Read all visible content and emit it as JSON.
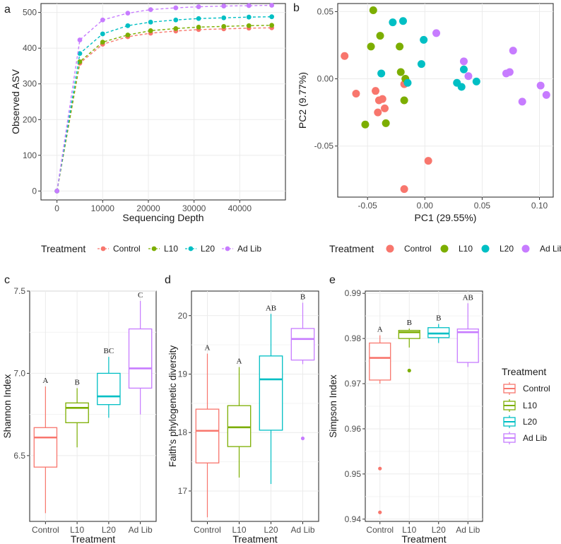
{
  "colors": {
    "Control": "#F8766D",
    "L10": "#7CAE00",
    "L20": "#00BFC4",
    "Ad Lib": "#C77CFF"
  },
  "chart_data": [
    {
      "panel_label": "a",
      "type": "line",
      "xlabel": "Sequencing Depth",
      "ylabel": "Observed ASV",
      "x": [
        0,
        5000,
        10000,
        15500,
        20500,
        26000,
        31000,
        36500,
        42000,
        47000
      ],
      "xlim": [
        -3500,
        50000
      ],
      "ylim": [
        -25,
        525
      ],
      "xticks": [
        0,
        10000,
        20000,
        30000,
        40000
      ],
      "xtick_labels": [
        "0",
        "10000",
        "20000",
        "30000",
        "40000"
      ],
      "yticks": [
        0,
        100,
        200,
        300,
        400,
        500
      ],
      "ytick_labels": [
        "0",
        "100",
        "200",
        "300",
        "400",
        "500"
      ],
      "series": [
        {
          "name": "Control",
          "values": [
            0,
            358,
            411,
            432,
            442,
            448,
            452,
            454,
            456,
            457
          ]
        },
        {
          "name": "L10",
          "values": [
            0,
            362,
            417,
            437,
            449,
            455,
            459,
            461,
            463,
            464
          ]
        },
        {
          "name": "L20",
          "values": [
            0,
            385,
            440,
            463,
            473,
            479,
            483,
            485,
            487,
            488
          ]
        },
        {
          "name": "Ad Lib",
          "values": [
            0,
            423,
            479,
            498,
            508,
            513,
            516,
            518,
            519,
            520
          ]
        }
      ],
      "legend_title": "Treatment",
      "legend_entries": [
        "Control",
        "L10",
        "L20",
        "Ad Lib"
      ],
      "legend_position": "bottom"
    },
    {
      "panel_label": "b",
      "type": "scatter",
      "xlabel": "PC1 (29.55%)",
      "ylabel": "PC2 (9.77%)",
      "xlim": [
        -0.076,
        0.112
      ],
      "ylim": [
        -0.088,
        0.056
      ],
      "xticks": [
        -0.05,
        0.0,
        0.05,
        0.1
      ],
      "xtick_labels": [
        "-0.05",
        "0.00",
        "0.05",
        "0.10"
      ],
      "yticks": [
        -0.05,
        0.0,
        0.05
      ],
      "ytick_labels": [
        "-0.05",
        "0.00",
        "0.05"
      ],
      "series": [
        {
          "name": "Control",
          "points": [
            [
              -0.07,
              0.017
            ],
            [
              -0.06,
              -0.011
            ],
            [
              -0.043,
              -0.009
            ],
            [
              -0.04,
              -0.016
            ],
            [
              -0.037,
              -0.015
            ],
            [
              -0.041,
              -0.025
            ],
            [
              -0.035,
              -0.022
            ],
            [
              -0.018,
              -0.004
            ],
            [
              0.003,
              -0.061
            ],
            [
              -0.018,
              -0.082
            ]
          ]
        },
        {
          "name": "L10",
          "points": [
            [
              -0.045,
              0.051
            ],
            [
              -0.047,
              0.024
            ],
            [
              -0.039,
              0.032
            ],
            [
              -0.022,
              0.024
            ],
            [
              -0.021,
              0.005
            ],
            [
              -0.017,
              0.0
            ],
            [
              -0.018,
              -0.016
            ],
            [
              -0.034,
              -0.033
            ],
            [
              -0.052,
              -0.034
            ]
          ]
        },
        {
          "name": "L20",
          "points": [
            [
              -0.028,
              0.042
            ],
            [
              -0.019,
              0.043
            ],
            [
              -0.038,
              0.004
            ],
            [
              -0.015,
              -0.003
            ],
            [
              -0.003,
              0.011
            ],
            [
              -0.001,
              0.029
            ],
            [
              0.028,
              -0.003
            ],
            [
              0.032,
              -0.006
            ],
            [
              0.034,
              0.007
            ],
            [
              0.045,
              -0.002
            ]
          ]
        },
        {
          "name": "Ad Lib",
          "points": [
            [
              0.01,
              0.034
            ],
            [
              0.034,
              0.013
            ],
            [
              0.038,
              0.002
            ],
            [
              0.071,
              0.004
            ],
            [
              0.074,
              0.005
            ],
            [
              0.077,
              0.021
            ],
            [
              0.085,
              -0.017
            ],
            [
              0.101,
              -0.005
            ],
            [
              0.106,
              -0.012
            ]
          ]
        }
      ],
      "legend_title": "Treatment",
      "legend_entries": [
        "Control",
        "L10",
        "L20",
        "Ad Lib"
      ],
      "legend_position": "bottom"
    },
    {
      "panel_label": "c",
      "type": "box",
      "xlabel": "Treatment",
      "ylabel": "Shannon Index",
      "categories": [
        "Control",
        "L10",
        "L20",
        "Ad Lib"
      ],
      "ylim": [
        6.1,
        7.5
      ],
      "yticks": [
        6.5,
        7.0,
        7.5
      ],
      "ytick_labels": [
        "6.5",
        "7.0",
        "7.5"
      ],
      "boxes": [
        {
          "min": 6.15,
          "q1": 6.43,
          "median": 6.61,
          "q3": 6.67,
          "max": 6.92,
          "letter": "A",
          "outliers": []
        },
        {
          "min": 6.55,
          "q1": 6.7,
          "median": 6.79,
          "q3": 6.82,
          "max": 6.91,
          "letter": "B",
          "outliers": []
        },
        {
          "min": 6.73,
          "q1": 6.81,
          "median": 6.86,
          "q3": 7.0,
          "max": 7.1,
          "letter": "BC",
          "outliers": []
        },
        {
          "min": 6.75,
          "q1": 6.91,
          "median": 7.03,
          "q3": 7.27,
          "max": 7.44,
          "letter": "C",
          "outliers": []
        }
      ]
    },
    {
      "panel_label": "d",
      "type": "box",
      "xlabel": "Treatment",
      "ylabel": "Faith's phylogenetic diversity",
      "categories": [
        "Control",
        "L10",
        "L20",
        "Ad Lib"
      ],
      "ylim": [
        16.48,
        20.42
      ],
      "yticks": [
        17,
        18,
        19,
        20
      ],
      "ytick_labels": [
        "17",
        "18",
        "19",
        "20"
      ],
      "boxes": [
        {
          "min": 16.55,
          "q1": 17.48,
          "median": 18.03,
          "q3": 18.4,
          "max": 19.35,
          "letter": "A",
          "outliers": []
        },
        {
          "min": 17.23,
          "q1": 17.76,
          "median": 18.09,
          "q3": 18.46,
          "max": 19.12,
          "letter": "A",
          "outliers": []
        },
        {
          "min": 17.12,
          "q1": 18.04,
          "median": 18.91,
          "q3": 19.31,
          "max": 20.03,
          "letter": "AB",
          "outliers": []
        },
        {
          "min": 19.17,
          "q1": 19.24,
          "median": 19.6,
          "q3": 19.78,
          "max": 20.22,
          "letter": "B",
          "outliers": [
            17.9
          ]
        }
      ]
    },
    {
      "panel_label": "e",
      "type": "box",
      "xlabel": "Treatment",
      "ylabel": "Simpson Index",
      "categories": [
        "Control",
        "L10",
        "L20",
        "Ad Lib"
      ],
      "ylim": [
        0.9395,
        0.9905
      ],
      "yticks": [
        0.94,
        0.95,
        0.96,
        0.97,
        0.98,
        0.99
      ],
      "ytick_labels": [
        "0.94",
        "0.95",
        "0.96",
        "0.97",
        "0.98",
        "0.99"
      ],
      "boxes": [
        {
          "min": 0.97,
          "q1": 0.9708,
          "median": 0.9757,
          "q3": 0.979,
          "max": 0.9807,
          "letter": "A",
          "outliers": [
            0.9512,
            0.9415
          ]
        },
        {
          "min": 0.978,
          "q1": 0.98,
          "median": 0.9814,
          "q3": 0.9818,
          "max": 0.9822,
          "letter": "B",
          "outliers": [
            0.9729
          ]
        },
        {
          "min": 0.979,
          "q1": 0.9802,
          "median": 0.9811,
          "q3": 0.9824,
          "max": 0.9832,
          "letter": "B",
          "outliers": []
        },
        {
          "min": 0.9737,
          "q1": 0.9747,
          "median": 0.9814,
          "q3": 0.9821,
          "max": 0.9878,
          "letter": "AB",
          "outliers": []
        }
      ],
      "legend_title": "Treatment",
      "legend_entries": [
        "Control",
        "L10",
        "L20",
        "Ad Lib"
      ],
      "legend_position": "right"
    }
  ]
}
